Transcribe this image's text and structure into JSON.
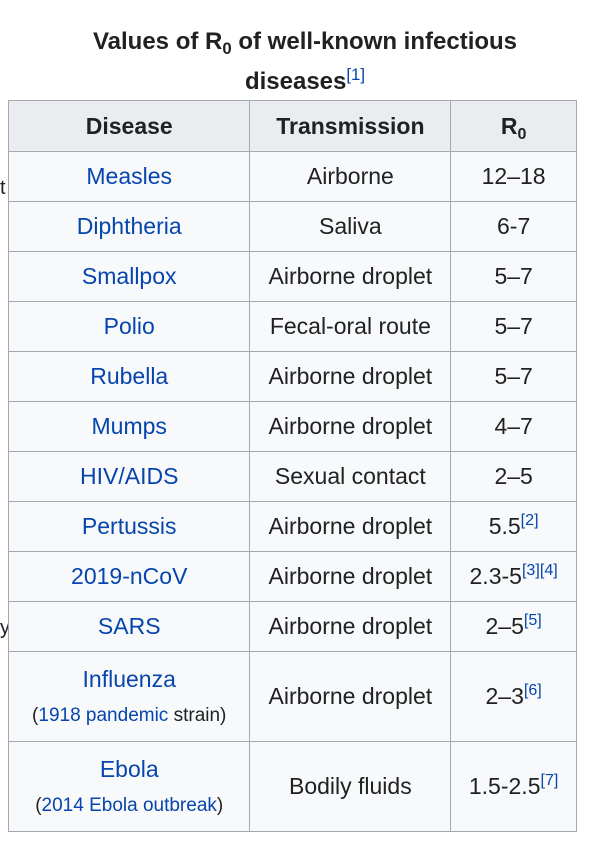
{
  "caption": {
    "text": "Values of R",
    "sub": "0",
    "rest": " of well-known infectious diseases",
    "ref": "[1]"
  },
  "headers": {
    "disease": "Disease",
    "transmission": "Transmission",
    "r0": "R",
    "r0_sub": "0"
  },
  "edge_glyphs": [
    "t",
    "y"
  ],
  "rows": [
    {
      "disease": "Measles",
      "transmission": "Airborne",
      "r0": "12–18",
      "ref": ""
    },
    {
      "disease": "Diphtheria",
      "transmission": "Saliva",
      "r0": "6-7",
      "ref": ""
    },
    {
      "disease": "Smallpox",
      "transmission": "Airborne droplet",
      "r0": "5–7",
      "ref": ""
    },
    {
      "disease": "Polio",
      "transmission": "Fecal-oral route",
      "r0": "5–7",
      "ref": ""
    },
    {
      "disease": "Rubella",
      "transmission": "Airborne droplet",
      "r0": "5–7",
      "ref": ""
    },
    {
      "disease": "Mumps",
      "transmission": "Airborne droplet",
      "r0": "4–7",
      "ref": ""
    },
    {
      "disease": "HIV/AIDS",
      "transmission": "Sexual contact",
      "r0": "2–5",
      "ref": ""
    },
    {
      "disease": "Pertussis",
      "transmission": "Airborne droplet",
      "r0": "5.5",
      "ref": "[2]"
    },
    {
      "disease": "2019-nCoV",
      "transmission": "Airborne droplet",
      "r0": "2.3-5",
      "ref": "[3][4]"
    },
    {
      "disease": "SARS",
      "transmission": "Airborne droplet",
      "r0": "2–5",
      "ref": "[5]"
    },
    {
      "disease": "Influenza",
      "note_open": "(",
      "note_link": "1918 pandemic",
      "note_rest": " strain)",
      "transmission": "Airborne droplet",
      "r0": "2–3",
      "ref": "[6]"
    },
    {
      "disease": "Ebola",
      "note_open": "(",
      "note_link": "2014 Ebola outbreak",
      "note_rest": ")",
      "transmission": "Bodily fluids",
      "r0": "1.5-2.5",
      "ref": "[7]"
    }
  ],
  "colors": {
    "link": "#0645ad",
    "border": "#a2a9b1",
    "header_bg": "#eaecf0",
    "cell_bg": "#f8f9fa",
    "text": "#202122"
  }
}
